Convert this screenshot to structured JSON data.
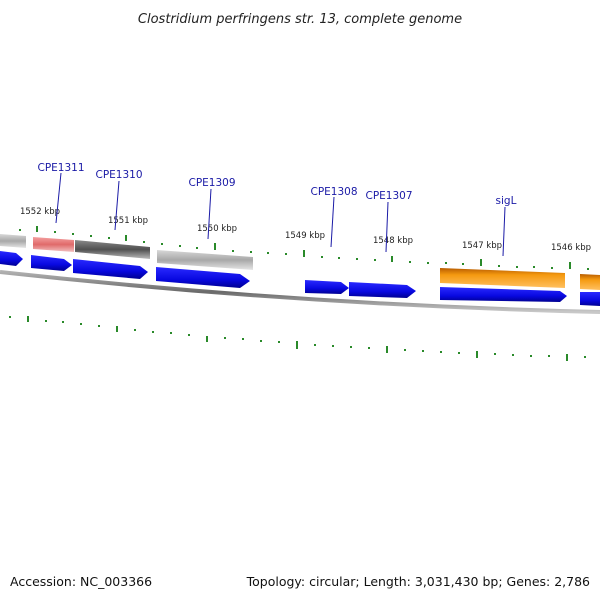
{
  "header": {
    "title": "Clostridium perfringens str. 13, complete genome"
  },
  "footer": {
    "accession": "Accession: NC_003366",
    "summary": "Topology: circular; Length: 3,031,430 bp; Genes: 2,786"
  },
  "ruler": {
    "ticks": [
      "1552 kbp",
      "1551 kbp",
      "1550 kbp",
      "1549 kbp",
      "1548 kbp",
      "1547 kbp",
      "1546 kbp"
    ]
  },
  "genes": {
    "labels": [
      "CPE1311",
      "CPE1310",
      "CPE1309",
      "CPE1308",
      "CPE1307",
      "sigL"
    ]
  },
  "colors": {
    "cds_blue": "#0a0ae6",
    "backbone_grey": "#808080",
    "feature_red": "#e87878",
    "feature_dark_grey": "#5e5e5e",
    "feature_light_grey": "#b8b8b8",
    "feature_orange": "#f08a00",
    "tick_green": "#2a8a2a",
    "label_blue": "#1a1aa6"
  }
}
